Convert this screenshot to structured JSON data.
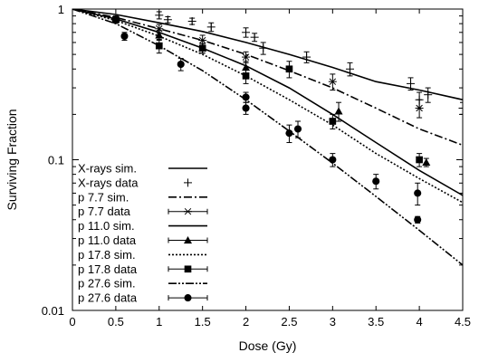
{
  "chart_data": {
    "type": "line",
    "xlabel": "Dose (Gy)",
    "ylabel": "Surviving Fraction",
    "xlim": [
      0,
      4.5
    ],
    "ylim": [
      0.01,
      1
    ],
    "yscale": "log",
    "grid": false,
    "legend_position": "bottom-left",
    "x_ticks": [
      "0",
      "0.5",
      "1",
      "1.5",
      "2",
      "2.5",
      "3",
      "3.5",
      "4",
      "4.5"
    ],
    "y_ticks": [
      "0.01",
      "0.1",
      "1"
    ],
    "series": [
      {
        "name": "X-rays sim.",
        "kind": "line",
        "dash": "solid",
        "x": [
          0,
          0.5,
          1,
          1.5,
          2,
          2.5,
          3,
          3.5,
          4,
          4.5
        ],
        "y": [
          1.0,
          0.92,
          0.81,
          0.71,
          0.6,
          0.5,
          0.41,
          0.33,
          0.29,
          0.25
        ]
      },
      {
        "name": "X-rays data",
        "kind": "points",
        "marker": "plus",
        "points": [
          {
            "x": 0.5,
            "y": 0.86,
            "err": 0.04
          },
          {
            "x": 1.0,
            "y": 0.91,
            "err": 0.05
          },
          {
            "x": 1.1,
            "y": 0.85,
            "err": 0.04
          },
          {
            "x": 1.38,
            "y": 0.83,
            "err": 0.04
          },
          {
            "x": 1.6,
            "y": 0.76,
            "err": 0.05
          },
          {
            "x": 2.0,
            "y": 0.7,
            "err": 0.05
          },
          {
            "x": 2.1,
            "y": 0.65,
            "err": 0.04
          },
          {
            "x": 2.2,
            "y": 0.55,
            "err": 0.05
          },
          {
            "x": 2.7,
            "y": 0.48,
            "err": 0.04
          },
          {
            "x": 3.2,
            "y": 0.4,
            "err": 0.04
          },
          {
            "x": 3.9,
            "y": 0.32,
            "err": 0.03
          },
          {
            "x": 4.0,
            "y": 0.25,
            "err": 0.03
          },
          {
            "x": 4.1,
            "y": 0.27,
            "err": 0.03
          },
          {
            "x": 4.5,
            "y": 0.22,
            "err": 0.02
          }
        ]
      },
      {
        "name": "p 7.7 sim.",
        "kind": "line",
        "dash": "dashdot",
        "x": [
          0,
          0.5,
          1,
          1.5,
          2,
          2.5,
          3,
          3.5,
          4,
          4.5
        ],
        "y": [
          1.0,
          0.88,
          0.74,
          0.62,
          0.5,
          0.39,
          0.3,
          0.22,
          0.16,
          0.125
        ]
      },
      {
        "name": "p 7.7 data",
        "kind": "points",
        "marker": "asterisk",
        "points": [
          {
            "x": 0.5,
            "y": 0.85,
            "err": 0.03
          },
          {
            "x": 1.0,
            "y": 0.74,
            "err": 0.05
          },
          {
            "x": 1.5,
            "y": 0.62,
            "err": 0.05
          },
          {
            "x": 2.0,
            "y": 0.48,
            "err": 0.04
          },
          {
            "x": 3.0,
            "y": 0.33,
            "err": 0.04
          },
          {
            "x": 4.0,
            "y": 0.22,
            "err": 0.03
          }
        ]
      },
      {
        "name": "p 11.0 sim.",
        "kind": "line",
        "dash": "solid",
        "x": [
          0,
          0.5,
          1,
          1.5,
          2,
          2.5,
          3,
          3.5,
          4,
          4.5
        ],
        "y": [
          1.0,
          0.86,
          0.7,
          0.55,
          0.42,
          0.3,
          0.2,
          0.13,
          0.085,
          0.058
        ]
      },
      {
        "name": "p 11.0 data",
        "kind": "points",
        "marker": "triangle",
        "points": [
          {
            "x": 0.5,
            "y": 0.86,
            "err": 0.03
          },
          {
            "x": 1.0,
            "y": 0.67,
            "err": 0.05
          },
          {
            "x": 1.5,
            "y": 0.55,
            "err": 0.04
          },
          {
            "x": 2.0,
            "y": 0.41,
            "err": 0.04
          },
          {
            "x": 3.07,
            "y": 0.21,
            "err": 0.03
          },
          {
            "x": 4.08,
            "y": 0.096,
            "err": 0.006
          }
        ]
      },
      {
        "name": "p 17.8 sim.",
        "kind": "line",
        "dash": "dotted",
        "x": [
          0,
          0.5,
          1,
          1.5,
          2,
          2.5,
          3,
          3.5,
          4,
          4.5
        ],
        "y": [
          1.0,
          0.84,
          0.66,
          0.5,
          0.36,
          0.25,
          0.17,
          0.11,
          0.075,
          0.052
        ]
      },
      {
        "name": "p 17.8 data",
        "kind": "points",
        "marker": "square",
        "points": [
          {
            "x": 0.5,
            "y": 0.85,
            "err": 0.03
          },
          {
            "x": 1.0,
            "y": 0.57,
            "err": 0.06
          },
          {
            "x": 1.5,
            "y": 0.55,
            "err": 0.04
          },
          {
            "x": 2.0,
            "y": 0.36,
            "err": 0.04
          },
          {
            "x": 2.5,
            "y": 0.4,
            "err": 0.05
          },
          {
            "x": 3.0,
            "y": 0.18,
            "err": 0.02
          },
          {
            "x": 4.0,
            "y": 0.1,
            "err": 0.01
          }
        ]
      },
      {
        "name": "p 27.6 sim.",
        "kind": "line",
        "dash": "dashdotdot",
        "x": [
          0,
          0.5,
          1,
          1.5,
          2,
          2.5,
          3,
          3.5,
          4,
          4.5
        ],
        "y": [
          1.0,
          0.8,
          0.57,
          0.39,
          0.25,
          0.155,
          0.095,
          0.057,
          0.034,
          0.02
        ]
      },
      {
        "name": "p 27.6 data",
        "kind": "points",
        "marker": "circle",
        "points": [
          {
            "x": 0.5,
            "y": 0.84,
            "err": 0.03
          },
          {
            "x": 0.6,
            "y": 0.66,
            "err": 0.04
          },
          {
            "x": 1.25,
            "y": 0.43,
            "err": 0.04
          },
          {
            "x": 2.0,
            "y": 0.26,
            "err": 0.02
          },
          {
            "x": 2.0,
            "y": 0.22,
            "err": 0.02
          },
          {
            "x": 2.5,
            "y": 0.15,
            "err": 0.02
          },
          {
            "x": 2.6,
            "y": 0.16,
            "err": 0.02
          },
          {
            "x": 3.0,
            "y": 0.1,
            "err": 0.01
          },
          {
            "x": 3.5,
            "y": 0.072,
            "err": 0.008
          },
          {
            "x": 3.98,
            "y": 0.06,
            "err": 0.01
          },
          {
            "x": 3.98,
            "y": 0.04,
            "err": 0.002
          }
        ]
      }
    ]
  }
}
